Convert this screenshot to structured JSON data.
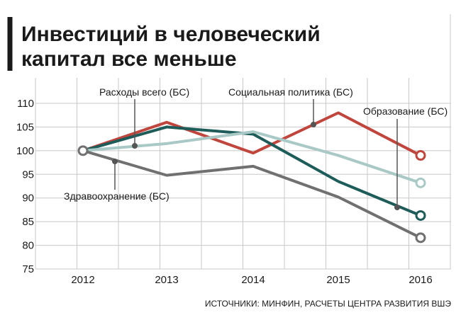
{
  "chart_data": {
    "type": "line",
    "title_lines": [
      "Инвестиций в человеческий",
      "капитал все меньше"
    ],
    "x": [
      "2012",
      "2013",
      "2014",
      "2015",
      "2016"
    ],
    "y_ticks": [
      75,
      80,
      85,
      90,
      95,
      100,
      105,
      110
    ],
    "ylim": [
      75,
      110
    ],
    "grid": true,
    "series": [
      {
        "name": "Социальная политика (БС)",
        "color": "#c0453c",
        "values": [
          100,
          106,
          99.5,
          108,
          99
        ]
      },
      {
        "name": "Расходы всего (БС)",
        "color": "#1d5c59",
        "values": [
          100,
          105,
          103.5,
          93.5,
          86.3
        ]
      },
      {
        "name": "Образование (БС)",
        "color": "#a9c9c6",
        "values": [
          100,
          101.5,
          104,
          99,
          93.2
        ]
      },
      {
        "name": "Здравоохранение (БС)",
        "color": "#707070",
        "values": [
          100,
          94.8,
          96.7,
          90.2,
          81.6
        ]
      }
    ],
    "source": "ИСТОЧНИКИ: МИНФИН, РАСЧЕТЫ ЦЕНТРА РАЗВИТИЯ ВШЭ"
  }
}
